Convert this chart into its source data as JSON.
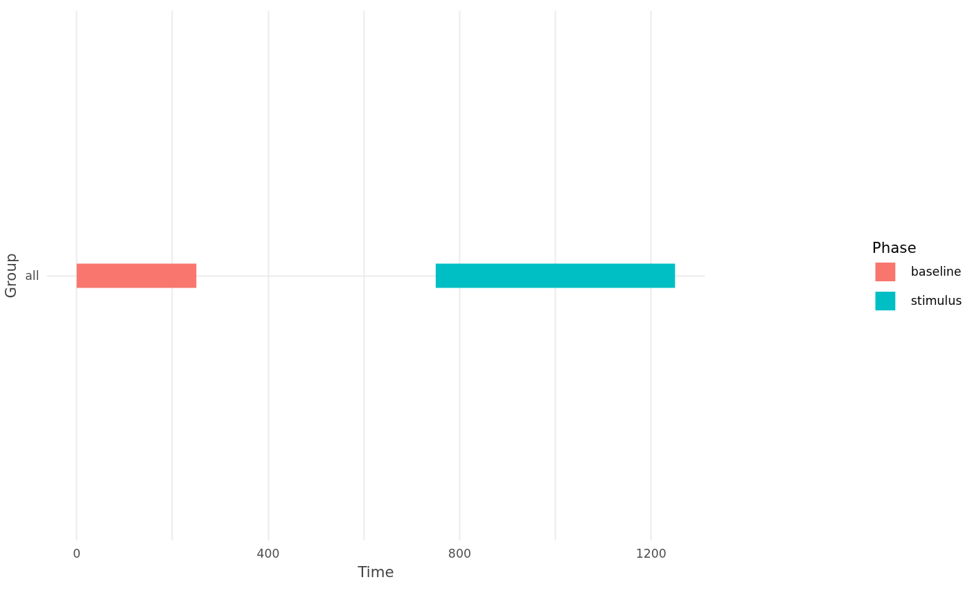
{
  "chart_data": {
    "type": "bar",
    "orientation": "horizontal",
    "xlabel": "Time",
    "ylabel": "Group",
    "legend_title": "Phase",
    "categories": [
      "all"
    ],
    "series": [
      {
        "name": "baseline",
        "color": "#f8766d",
        "values": [
          250
        ],
        "base": [
          0
        ]
      },
      {
        "name": "stimulus",
        "color": "#00bfc4",
        "values": [
          500
        ],
        "base": [
          750
        ]
      }
    ],
    "xlim": [
      -62.5,
      1312.5
    ],
    "xticks": [
      0,
      {
        "value": 200,
        "label": null
      },
      400,
      {
        "value": 600,
        "label": null
      },
      800,
      {
        "value": 1000,
        "label": null
      },
      1200
    ],
    "grid": true,
    "legend": "right"
  }
}
